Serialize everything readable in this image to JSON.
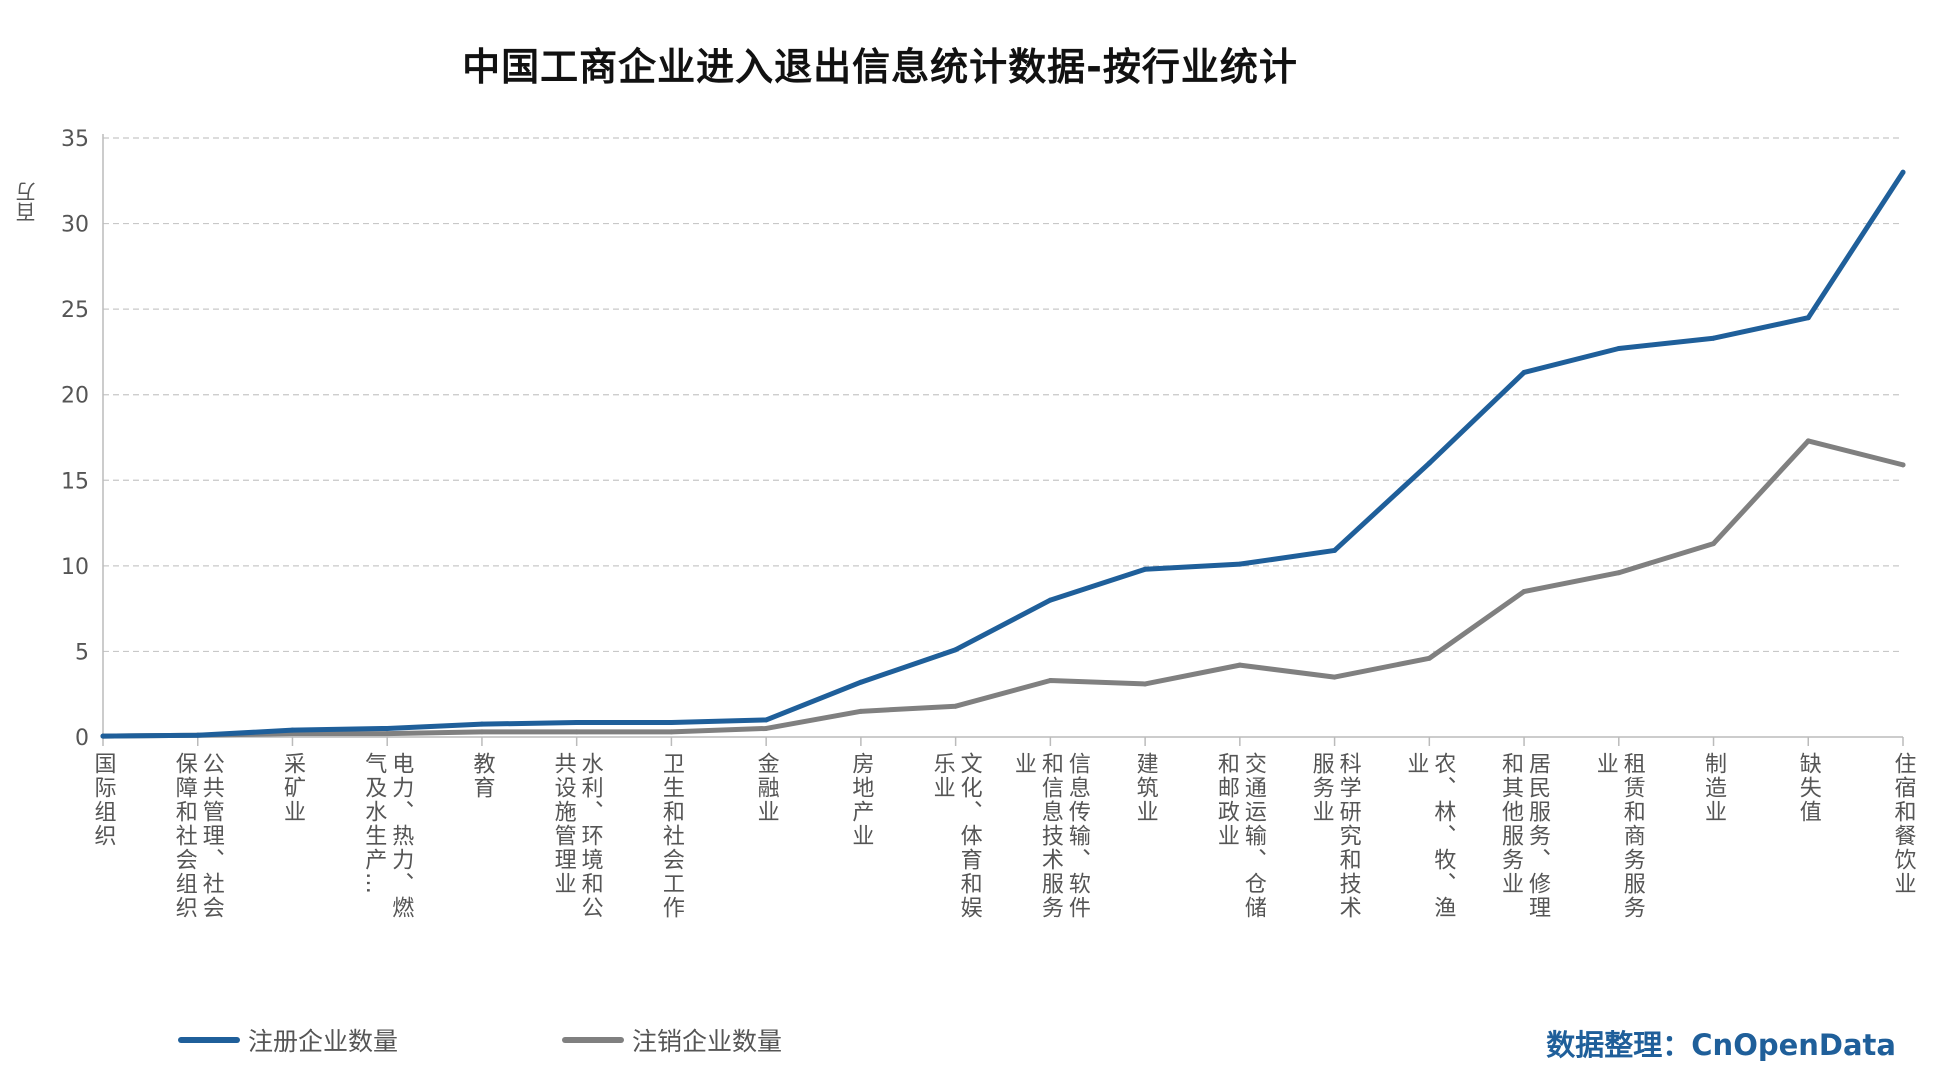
{
  "chart_data": {
    "type": "line",
    "title": "中国工商企业进入退出信息统计数据-按行业统计",
    "ylabel": "百万",
    "xlabel": "",
    "ylim": [
      0,
      35
    ],
    "yticks": [
      0,
      5,
      10,
      15,
      20,
      25,
      30,
      35
    ],
    "grid": true,
    "legend_position": "bottom-left",
    "categories": [
      "国际组织",
      "公共管理、社会保障和社会组织",
      "采矿业",
      "电力、热力、燃气及水生产…",
      "教育",
      "水利、环境和公共设施管理业",
      "卫生和社会工作",
      "金融业",
      "房地产业",
      "文化、体育和娱乐业",
      "信息传输、软件和信息技术服务业",
      "建筑业",
      "交通运输、仓储和邮政业",
      "科学研究和技术服务业",
      "农、林、牧、渔业",
      "居民服务、修理和其他服务业",
      "租赁和商务服务业",
      "制造业",
      "缺失值",
      "住宿和餐饮业"
    ],
    "series": [
      {
        "name": "注册企业数量",
        "color": "#1f5f9a",
        "values": [
          0.05,
          0.1,
          0.4,
          0.5,
          0.75,
          0.85,
          0.85,
          1.0,
          3.2,
          5.1,
          8.0,
          9.8,
          10.1,
          10.9,
          16.0,
          21.3,
          22.7,
          23.3,
          24.5,
          33.0
        ]
      },
      {
        "name": "注销企业数量",
        "color": "#808080",
        "values": [
          0.05,
          0.1,
          0.2,
          0.2,
          0.3,
          0.3,
          0.3,
          0.5,
          1.5,
          1.8,
          3.3,
          3.1,
          4.2,
          3.5,
          4.6,
          8.5,
          9.6,
          11.3,
          17.3,
          15.9
        ]
      }
    ]
  },
  "source": "数据整理：CnOpenData"
}
